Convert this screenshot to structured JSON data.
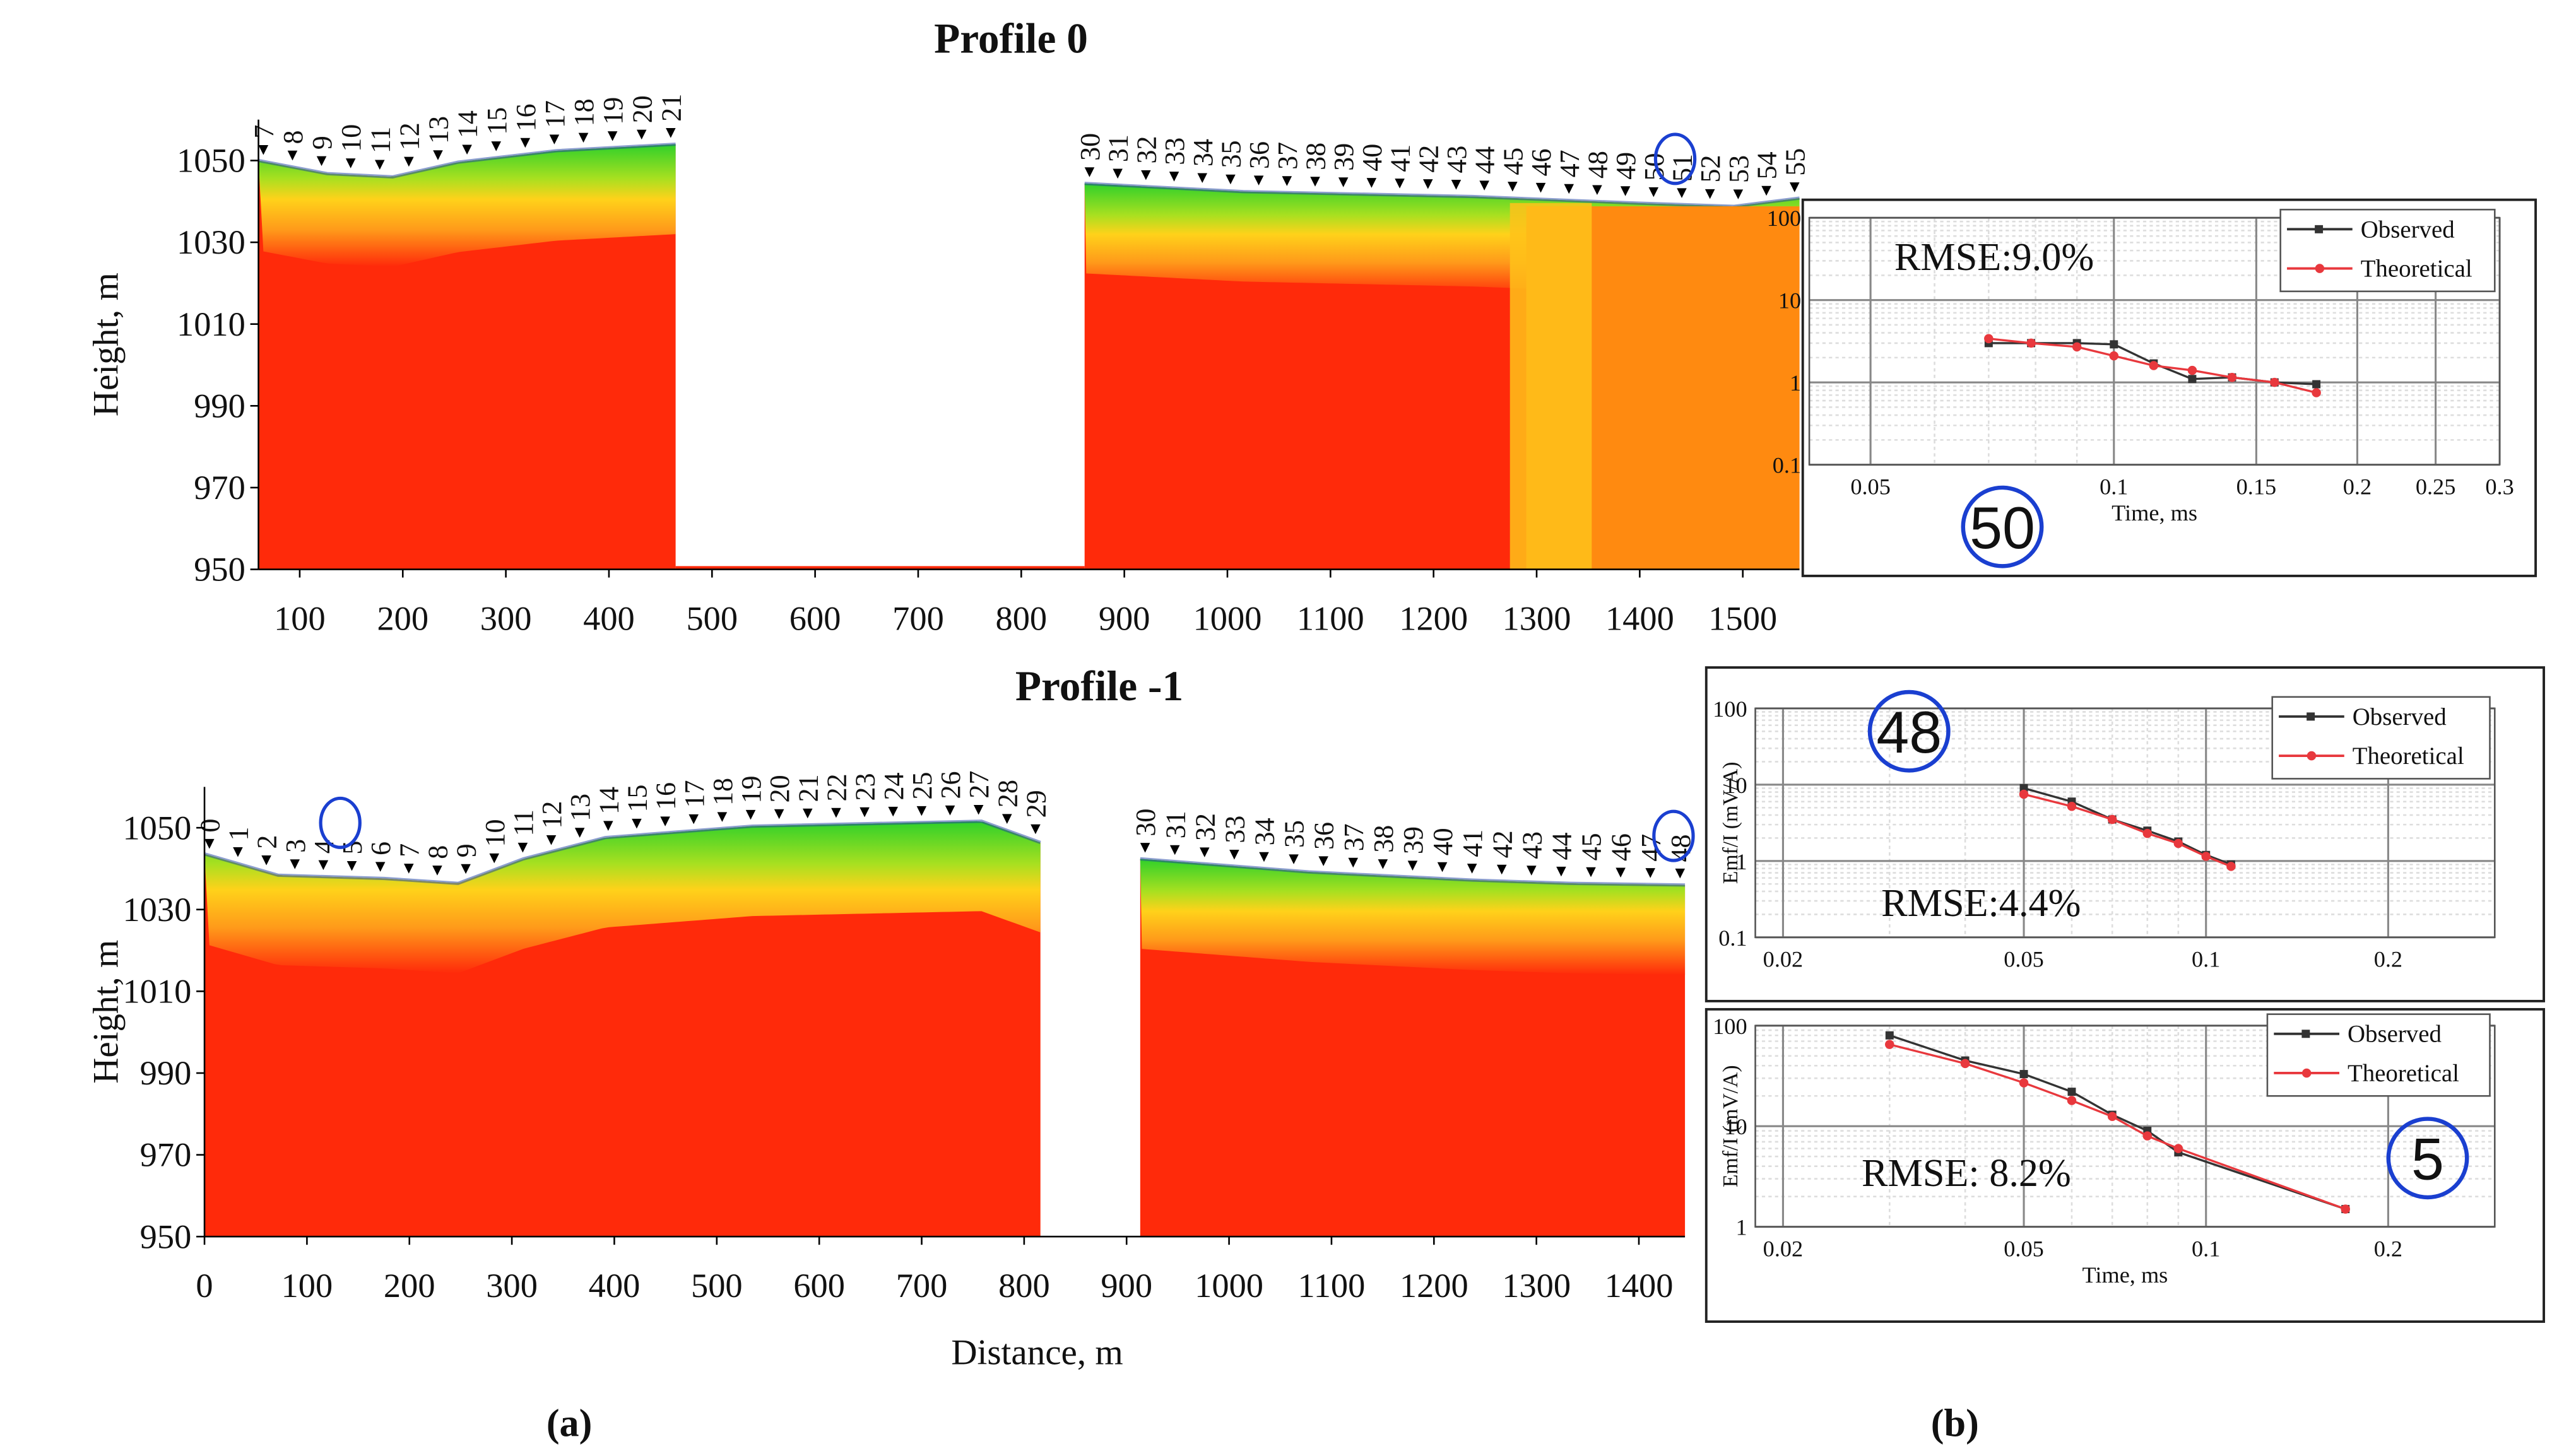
{
  "panel_labels": [
    "(a)",
    "(b)"
  ],
  "chart_data": [
    {
      "type": "section",
      "title": "Profile 0",
      "ylabel": "Height, m",
      "xlim": [
        60,
        1555
      ],
      "ylim": [
        950,
        1060
      ],
      "xticks": [
        100,
        200,
        300,
        400,
        500,
        600,
        700,
        800,
        900,
        1000,
        1100,
        1200,
        1300,
        1400,
        1500
      ],
      "yticks": [
        950,
        970,
        990,
        1010,
        1030,
        1050
      ],
      "stations": [
        [
          7,
          8,
          9,
          10,
          11,
          12,
          13,
          14,
          15,
          16,
          17,
          18,
          19,
          20,
          21
        ],
        [
          30,
          31,
          32,
          33,
          34,
          35,
          36,
          37,
          38,
          39,
          40,
          41,
          42,
          43,
          44,
          45,
          46,
          47,
          48,
          49,
          50,
          51,
          52,
          53,
          54,
          55
        ]
      ]
    },
    {
      "type": "section",
      "title": "Profile -1",
      "ylabel": "Height, m",
      "xlabel": "Distance, m",
      "xlim": [
        0,
        1445
      ],
      "ylim": [
        950,
        1060
      ],
      "xticks": [
        0,
        100,
        200,
        300,
        400,
        500,
        600,
        700,
        800,
        900,
        1000,
        1100,
        1200,
        1300,
        1400
      ],
      "yticks": [
        950,
        970,
        990,
        1010,
        1030,
        1050
      ],
      "stations": [
        [
          0,
          1,
          2,
          3,
          4,
          5,
          6,
          7,
          8,
          9,
          10,
          11,
          12,
          13,
          14,
          15,
          16,
          17,
          18,
          19,
          20,
          21,
          22,
          23,
          24,
          25,
          26,
          27,
          28,
          29
        ],
        [
          30,
          31,
          32,
          33,
          34,
          35,
          36,
          37,
          38,
          39,
          40,
          41,
          42,
          43,
          44,
          45,
          46,
          47,
          48
        ]
      ]
    },
    {
      "type": "decay",
      "station_label": "50",
      "annotation": "RMSE:9.0%",
      "xlabel": "Time, ms",
      "log_x": true,
      "log_y": true,
      "grid": true,
      "xlim": [
        0.042,
        0.3
      ],
      "ylim": [
        0.1,
        100
      ],
      "xticks": [
        0.05,
        0.1,
        0.15,
        0.2,
        0.25,
        0.3
      ],
      "yticks": [
        0.1,
        1,
        10,
        100
      ],
      "series": [
        {
          "name": "Observed",
          "color": "#333333",
          "x": [
            0.07,
            0.079,
            0.09,
            0.1,
            0.112,
            0.125,
            0.14,
            0.158,
            0.178
          ],
          "values": [
            3,
            3,
            3,
            2.9,
            1.7,
            1.1,
            1.15,
            1,
            0.95
          ]
        },
        {
          "name": "Theoretical",
          "color": "#e8383d",
          "x": [
            0.07,
            0.079,
            0.09,
            0.1,
            0.112,
            0.125,
            0.14,
            0.158,
            0.178
          ],
          "values": [
            3.4,
            3,
            2.7,
            2.1,
            1.6,
            1.4,
            1.15,
            1,
            0.75
          ]
        }
      ]
    },
    {
      "type": "decay",
      "station_label": "48",
      "annotation": "RMSE:4.4%",
      "ylabel": "Emf/I (mV/A)",
      "log_x": true,
      "log_y": true,
      "grid": true,
      "xlim": [
        0.018,
        0.3
      ],
      "ylim": [
        0.1,
        100
      ],
      "xticks": [
        0.02,
        0.05,
        0.1,
        0.2
      ],
      "yticks": [
        0.1,
        1,
        10,
        100
      ],
      "series": [
        {
          "name": "Observed",
          "color": "#333333",
          "x": [
            0.05,
            0.06,
            0.07,
            0.08,
            0.09,
            0.1,
            0.11
          ],
          "values": [
            9,
            6,
            3.5,
            2.5,
            1.8,
            1.2,
            0.9
          ]
        },
        {
          "name": "Theoretical",
          "color": "#e8383d",
          "x": [
            0.05,
            0.06,
            0.07,
            0.08,
            0.09,
            0.1,
            0.11
          ],
          "values": [
            7.5,
            5.2,
            3.5,
            2.3,
            1.7,
            1.15,
            0.85
          ]
        }
      ]
    },
    {
      "type": "decay",
      "station_label": "5",
      "annotation": "RMSE: 8.2%",
      "ylabel": "Emf/I (mV/A)",
      "xlabel": "Time, ms",
      "log_x": true,
      "log_y": true,
      "grid": true,
      "xlim": [
        0.018,
        0.3
      ],
      "ylim": [
        1,
        100
      ],
      "xticks": [
        0.02,
        0.05,
        0.1,
        0.2
      ],
      "yticks": [
        1,
        10,
        100
      ],
      "series": [
        {
          "name": "Observed",
          "color": "#333333",
          "x": [
            0.03,
            0.04,
            0.05,
            0.06,
            0.07,
            0.08,
            0.09,
            0.17
          ],
          "values": [
            80,
            45,
            33,
            22,
            13,
            9,
            5.5,
            1.5
          ]
        },
        {
          "name": "Theoretical",
          "color": "#e8383d",
          "x": [
            0.03,
            0.04,
            0.05,
            0.06,
            0.07,
            0.08,
            0.09,
            0.17
          ],
          "values": [
            65,
            42,
            27,
            18,
            12.5,
            8,
            6,
            1.5
          ]
        }
      ]
    }
  ]
}
